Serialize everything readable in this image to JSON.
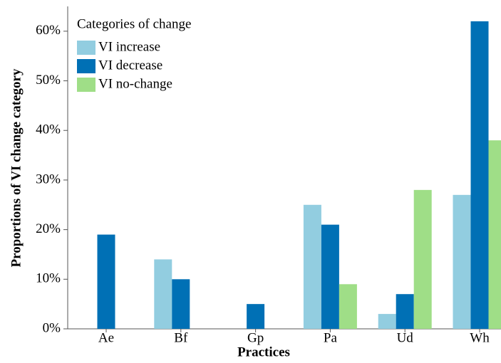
{
  "chart_data": {
    "type": "bar",
    "xlabel": "Practices",
    "ylabel": "Proportions of VI change category",
    "legend_title": "Categories of change",
    "legend": "upper left",
    "categories": [
      "Ae",
      "Bf",
      "Gp",
      "Pa",
      "Ud",
      "Wh"
    ],
    "series": [
      {
        "name": "VI increase",
        "color": "#92cde0",
        "values": [
          0,
          14,
          0,
          25,
          3,
          27
        ]
      },
      {
        "name": "VI decrease",
        "color": "#0070b5",
        "values": [
          19,
          10,
          5,
          21,
          7,
          62
        ]
      },
      {
        "name": "VI no-change",
        "color": "#9fde87",
        "values": [
          0,
          0,
          0,
          9,
          28,
          38
        ]
      }
    ],
    "ylim": [
      0,
      65
    ],
    "yticks": [
      {
        "value": 0,
        "label": "0%"
      },
      {
        "value": 10,
        "label": "10%"
      },
      {
        "value": 20,
        "label": "20%"
      },
      {
        "value": 30,
        "label": "30%"
      },
      {
        "value": 40,
        "label": "40%"
      },
      {
        "value": 50,
        "label": "50%"
      },
      {
        "value": 60,
        "label": "60%"
      }
    ]
  }
}
